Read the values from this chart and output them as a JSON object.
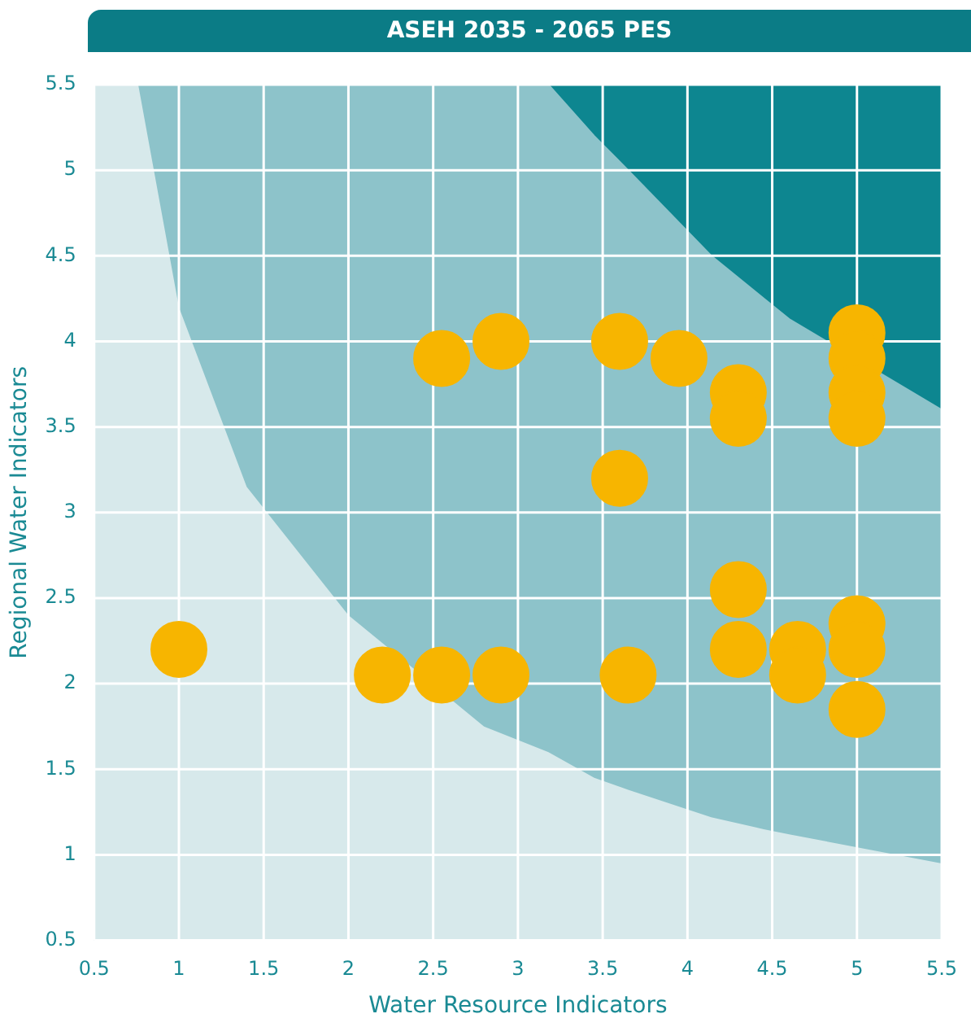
{
  "chart_data": {
    "type": "scatter",
    "title": "ASEH 2035 - 2065 PES",
    "xlabel": "Water Resource Indicators",
    "ylabel": "Regional Water Indicators",
    "xlim": [
      0.5,
      5.5
    ],
    "ylim": [
      0.5,
      5.5
    ],
    "xticks": [
      0.5,
      1,
      1.5,
      2,
      2.5,
      3,
      3.5,
      4,
      4.5,
      5,
      5.5
    ],
    "yticks": [
      0.5,
      1,
      1.5,
      2,
      2.5,
      3,
      3.5,
      4,
      4.5,
      5,
      5.5
    ],
    "grid": true,
    "legend": false,
    "series": [
      {
        "type": "area",
        "color": "#8dc3ca",
        "x": [
          0.5,
          0.76,
          1.0,
          1.4,
          2.0,
          2.8,
          3.18,
          3.45,
          3.65,
          4.14,
          4.45,
          4.6,
          5.5
        ],
        "values": [
          5.5,
          5.5,
          5.5,
          5.5,
          5.5,
          5.5,
          5.5,
          5.2,
          5.0,
          4.5,
          4.25,
          4.13,
          3.6
        ]
      },
      {
        "type": "area",
        "color": "#d7e9eb",
        "x": [
          0.5,
          0.76,
          1.0,
          1.4,
          2.0,
          2.8,
          3.18,
          3.45,
          3.65,
          4.14,
          4.45,
          4.6,
          5.5
        ],
        "values": [
          5.5,
          5.5,
          4.2,
          3.15,
          2.4,
          1.75,
          1.6,
          1.45,
          1.38,
          1.22,
          1.15,
          1.12,
          0.95
        ]
      },
      {
        "color": "#f7b500",
        "marker": "circle",
        "x": [
          1.0,
          2.2,
          2.55,
          2.9,
          3.65,
          2.55,
          2.9,
          3.6,
          3.95,
          3.6,
          4.3,
          4.3,
          4.3,
          4.3,
          4.65,
          4.65,
          5.0,
          5.0,
          5.0,
          5.0,
          5.0,
          5.0,
          5.0
        ],
        "values": [
          2.2,
          2.05,
          2.05,
          2.05,
          2.05,
          3.9,
          4.0,
          4.0,
          3.9,
          3.2,
          3.7,
          3.55,
          2.55,
          2.2,
          2.2,
          2.05,
          4.05,
          3.9,
          3.7,
          3.55,
          2.35,
          2.2,
          1.85
        ]
      }
    ]
  }
}
